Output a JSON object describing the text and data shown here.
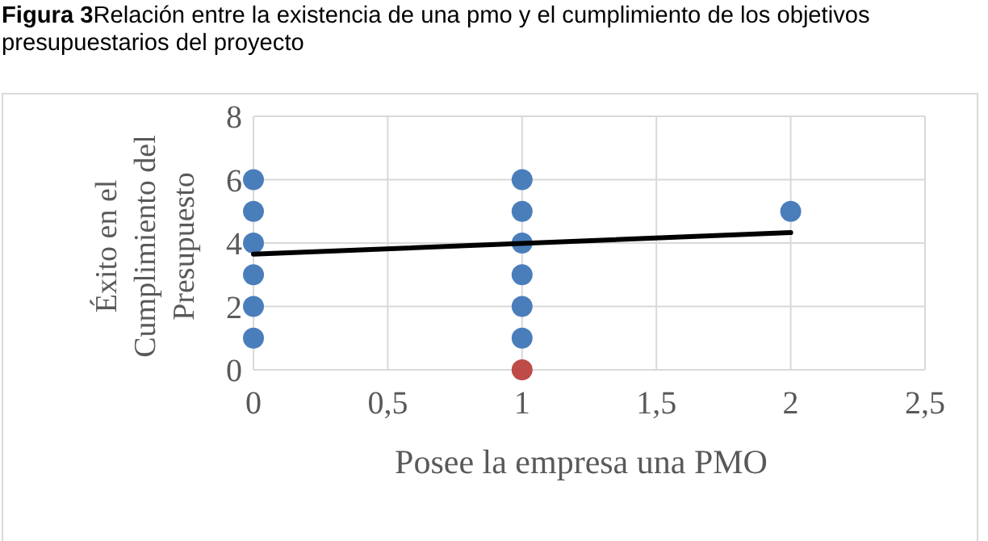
{
  "chart_data": {
    "type": "scatter",
    "title": "Figura 3",
    "subtitle": "Relación entre la existencia de una pmo y el cumplimiento de los objetivos presupuestarios del proyecto",
    "xlabel": "Posee la empresa una PMO",
    "ylabel": "Éxito en el Cumplimiento del Presupuesto",
    "xlim": [
      0,
      2.5
    ],
    "xticks": [
      0,
      {
        "value": 0.5,
        "label": "0,5"
      },
      1,
      {
        "value": 1.5,
        "label": "1,5"
      },
      2,
      {
        "value": 2.5,
        "label": "2,5"
      }
    ],
    "ylim": [
      0,
      8
    ],
    "yticks": [
      0,
      2,
      4,
      6,
      8
    ],
    "grid": true,
    "marker": "circle",
    "series": [
      {
        "color": "#4a7ebb",
        "x": [
          0,
          0,
          0,
          0,
          0,
          0,
          1,
          1,
          1,
          1,
          1,
          1,
          2
        ],
        "values": [
          1,
          2,
          3,
          4,
          5,
          6,
          1,
          2,
          3,
          4,
          5,
          6,
          5
        ]
      },
      {
        "color": "#be4b48",
        "x": [
          1
        ],
        "values": [
          0
        ]
      },
      {
        "type": "line",
        "color": "#000000",
        "marker": "none",
        "line_style": "solid",
        "x": [
          0,
          2
        ],
        "values": [
          3.65,
          4.33
        ]
      }
    ]
  }
}
